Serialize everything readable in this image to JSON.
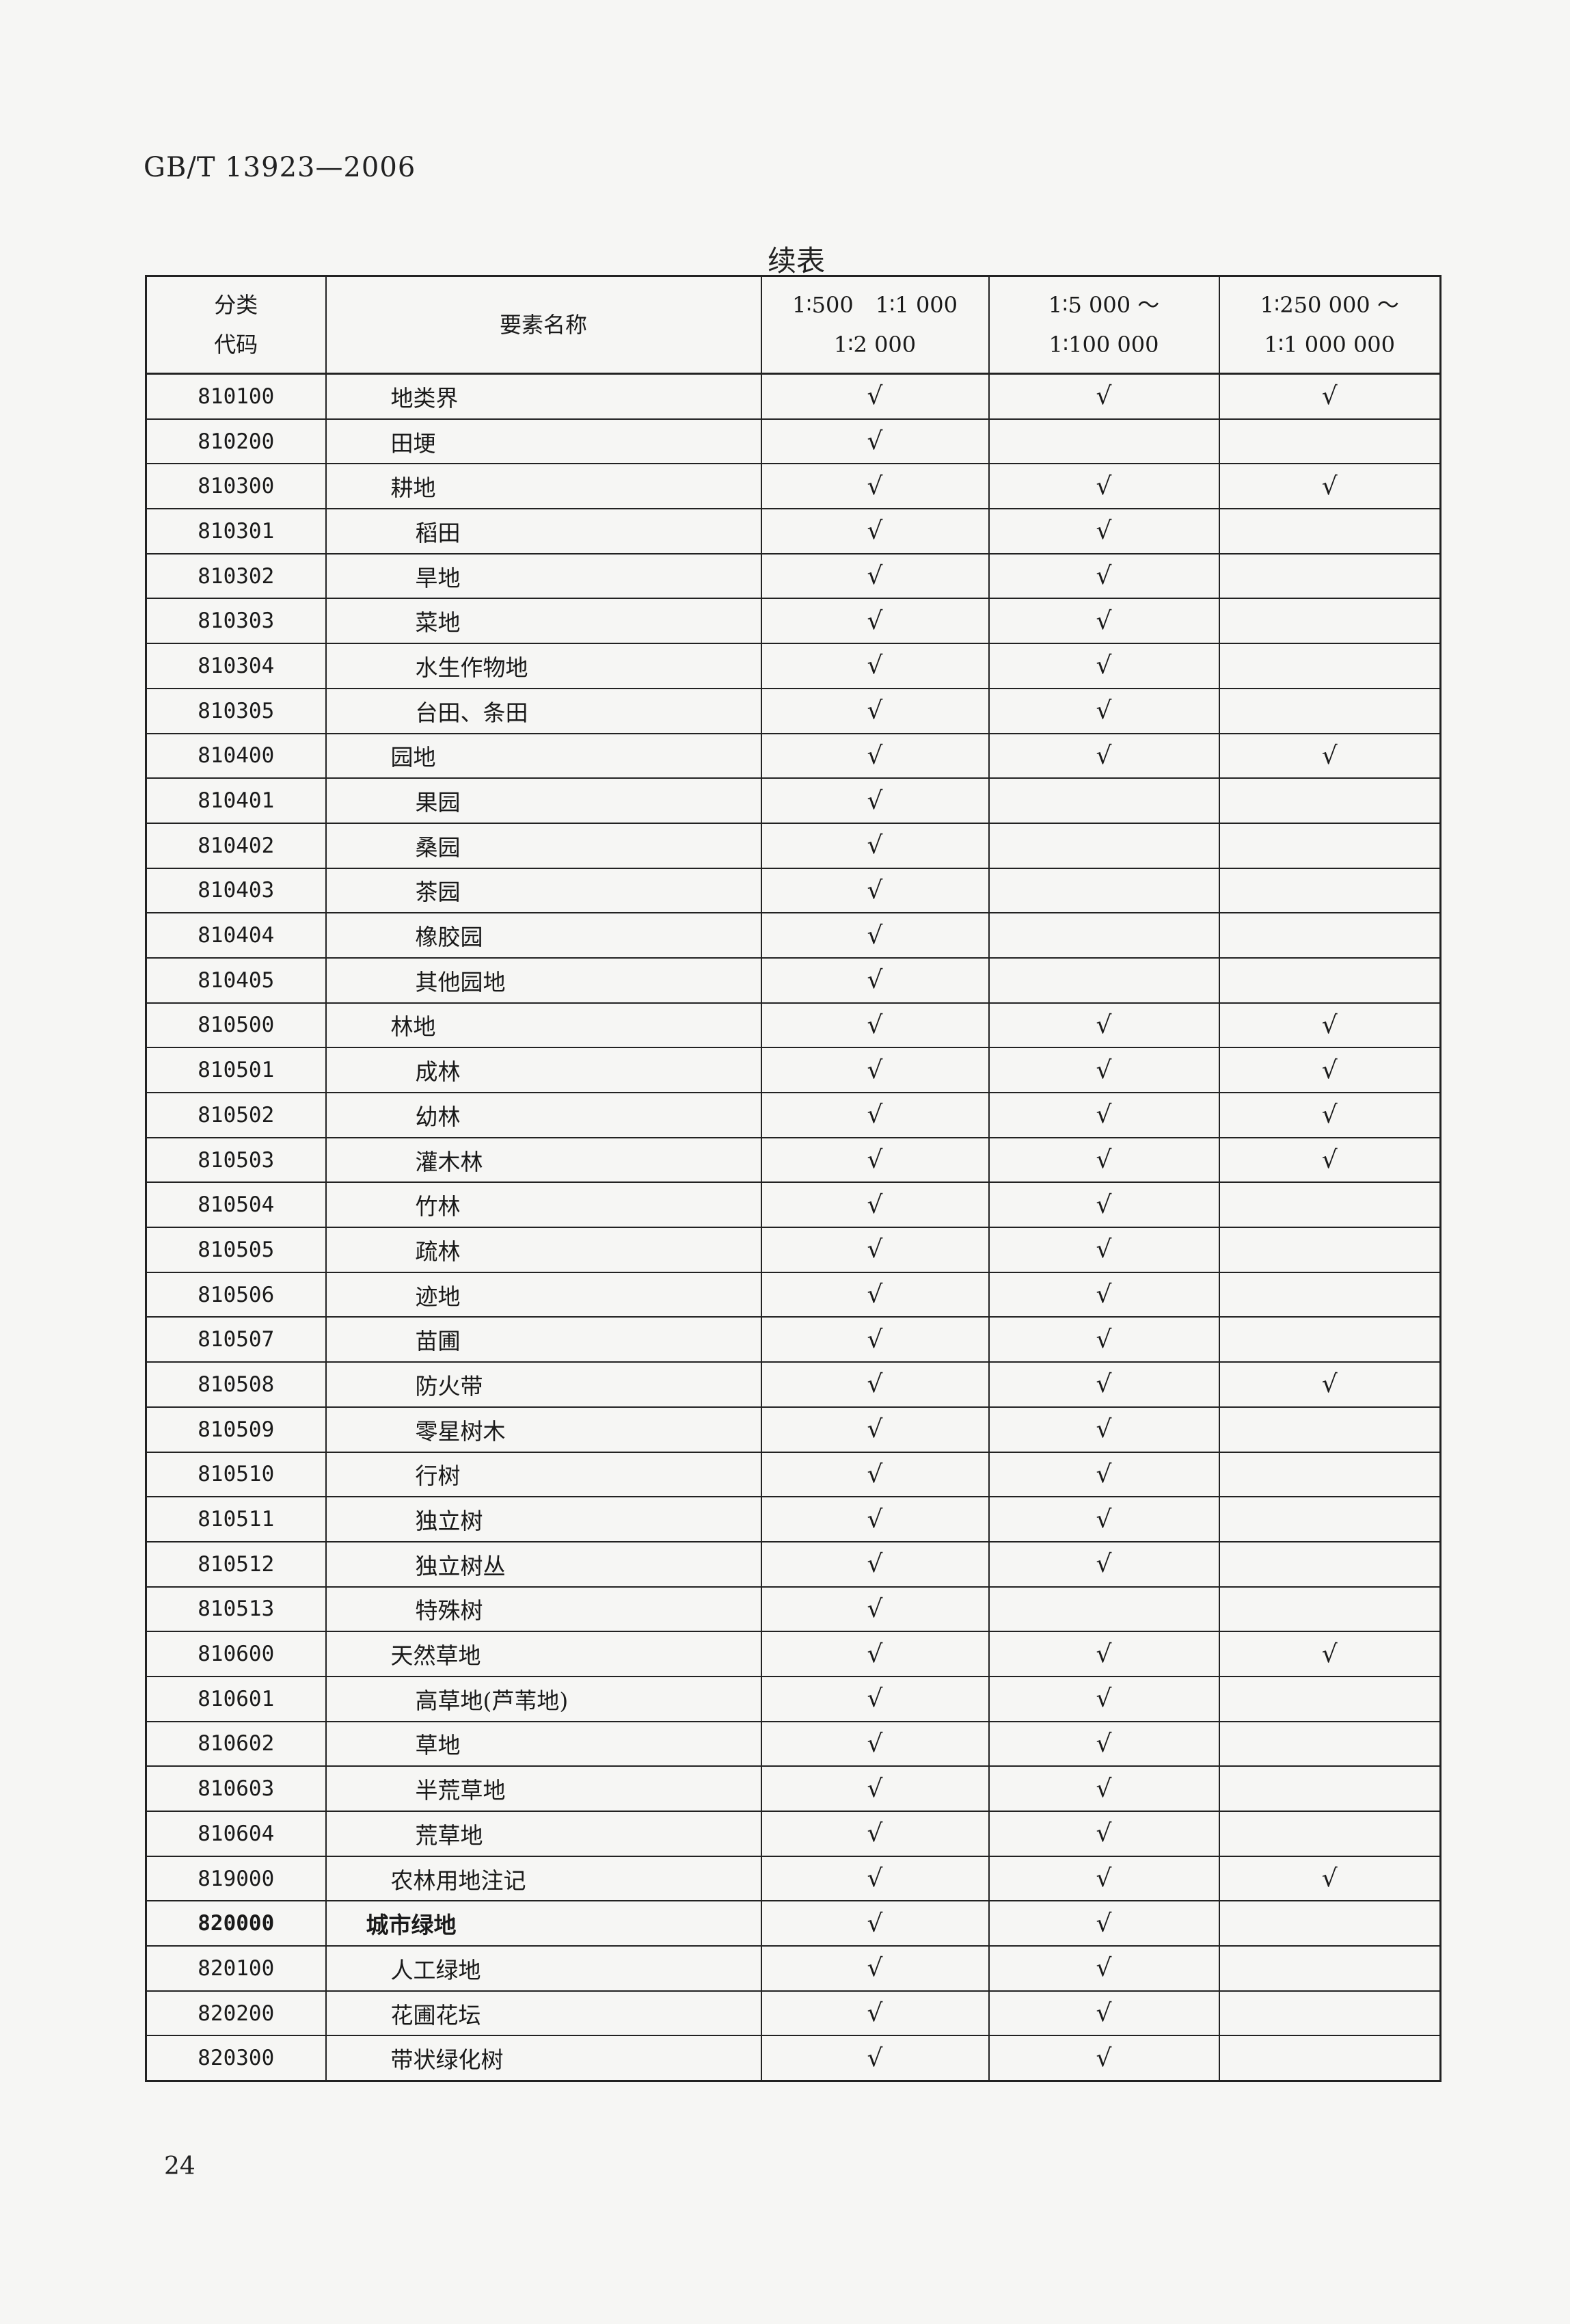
{
  "document": {
    "standard_id": "GB/T 13923—2006",
    "table_title": "续表",
    "page_number": "24"
  },
  "table": {
    "headers": {
      "code_line1": "分类",
      "code_line2": "代码",
      "name": "要素名称",
      "scale1_line1": "1∶500　1∶1 000",
      "scale1_line2": "1∶2 000",
      "scale2_line1": "1∶5 000 ～",
      "scale2_line2": "1∶100 000",
      "scale3_line1": "1∶250 000 ～",
      "scale3_line2": "1∶1 000 000"
    },
    "rows": [
      {
        "code": "810100",
        "name": "地类界",
        "level": "1",
        "m1": "√",
        "m2": "√",
        "m3": "√"
      },
      {
        "code": "810200",
        "name": "田埂",
        "level": "1",
        "m1": "√",
        "m2": "",
        "m3": ""
      },
      {
        "code": "810300",
        "name": "耕地",
        "level": "1",
        "m1": "√",
        "m2": "√",
        "m3": "√"
      },
      {
        "code": "810301",
        "name": "稻田",
        "level": "2",
        "m1": "√",
        "m2": "√",
        "m3": ""
      },
      {
        "code": "810302",
        "name": "旱地",
        "level": "2",
        "m1": "√",
        "m2": "√",
        "m3": ""
      },
      {
        "code": "810303",
        "name": "菜地",
        "level": "2",
        "m1": "√",
        "m2": "√",
        "m3": ""
      },
      {
        "code": "810304",
        "name": "水生作物地",
        "level": "2",
        "m1": "√",
        "m2": "√",
        "m3": ""
      },
      {
        "code": "810305",
        "name": "台田、条田",
        "level": "2",
        "m1": "√",
        "m2": "√",
        "m3": ""
      },
      {
        "code": "810400",
        "name": "园地",
        "level": "1",
        "m1": "√",
        "m2": "√",
        "m3": "√"
      },
      {
        "code": "810401",
        "name": "果园",
        "level": "2",
        "m1": "√",
        "m2": "",
        "m3": ""
      },
      {
        "code": "810402",
        "name": "桑园",
        "level": "2",
        "m1": "√",
        "m2": "",
        "m3": ""
      },
      {
        "code": "810403",
        "name": "茶园",
        "level": "2",
        "m1": "√",
        "m2": "",
        "m3": ""
      },
      {
        "code": "810404",
        "name": "橡胶园",
        "level": "2",
        "m1": "√",
        "m2": "",
        "m3": ""
      },
      {
        "code": "810405",
        "name": "其他园地",
        "level": "2",
        "m1": "√",
        "m2": "",
        "m3": ""
      },
      {
        "code": "810500",
        "name": "林地",
        "level": "1",
        "m1": "√",
        "m2": "√",
        "m3": "√"
      },
      {
        "code": "810501",
        "name": "成林",
        "level": "2",
        "m1": "√",
        "m2": "√",
        "m3": "√"
      },
      {
        "code": "810502",
        "name": "幼林",
        "level": "2",
        "m1": "√",
        "m2": "√",
        "m3": "√"
      },
      {
        "code": "810503",
        "name": "灌木林",
        "level": "2",
        "m1": "√",
        "m2": "√",
        "m3": "√"
      },
      {
        "code": "810504",
        "name": "竹林",
        "level": "2",
        "m1": "√",
        "m2": "√",
        "m3": ""
      },
      {
        "code": "810505",
        "name": "疏林",
        "level": "2",
        "m1": "√",
        "m2": "√",
        "m3": ""
      },
      {
        "code": "810506",
        "name": "迹地",
        "level": "2",
        "m1": "√",
        "m2": "√",
        "m3": ""
      },
      {
        "code": "810507",
        "name": "苗圃",
        "level": "2",
        "m1": "√",
        "m2": "√",
        "m3": ""
      },
      {
        "code": "810508",
        "name": "防火带",
        "level": "2",
        "m1": "√",
        "m2": "√",
        "m3": "√"
      },
      {
        "code": "810509",
        "name": "零星树木",
        "level": "2",
        "m1": "√",
        "m2": "√",
        "m3": ""
      },
      {
        "code": "810510",
        "name": "行树",
        "level": "2",
        "m1": "√",
        "m2": "√",
        "m3": ""
      },
      {
        "code": "810511",
        "name": "独立树",
        "level": "2",
        "m1": "√",
        "m2": "√",
        "m3": ""
      },
      {
        "code": "810512",
        "name": "独立树丛",
        "level": "2",
        "m1": "√",
        "m2": "√",
        "m3": ""
      },
      {
        "code": "810513",
        "name": "特殊树",
        "level": "2",
        "m1": "√",
        "m2": "",
        "m3": ""
      },
      {
        "code": "810600",
        "name": "天然草地",
        "level": "1",
        "m1": "√",
        "m2": "√",
        "m3": "√"
      },
      {
        "code": "810601",
        "name": "高草地(芦苇地)",
        "level": "2",
        "m1": "√",
        "m2": "√",
        "m3": ""
      },
      {
        "code": "810602",
        "name": "草地",
        "level": "2",
        "m1": "√",
        "m2": "√",
        "m3": ""
      },
      {
        "code": "810603",
        "name": "半荒草地",
        "level": "2",
        "m1": "√",
        "m2": "√",
        "m3": ""
      },
      {
        "code": "810604",
        "name": "荒草地",
        "level": "2",
        "m1": "√",
        "m2": "√",
        "m3": ""
      },
      {
        "code": "819000",
        "name": "农林用地注记",
        "level": "1",
        "m1": "√",
        "m2": "√",
        "m3": "√"
      },
      {
        "code": "820000",
        "name": "城市绿地",
        "level": "0",
        "m1": "√",
        "m2": "√",
        "m3": ""
      },
      {
        "code": "820100",
        "name": "人工绿地",
        "level": "1",
        "m1": "√",
        "m2": "√",
        "m3": ""
      },
      {
        "code": "820200",
        "name": "花圃花坛",
        "level": "1",
        "m1": "√",
        "m2": "√",
        "m3": ""
      },
      {
        "code": "820300",
        "name": "带状绿化树",
        "level": "1",
        "m1": "√",
        "m2": "√",
        "m3": ""
      }
    ]
  }
}
